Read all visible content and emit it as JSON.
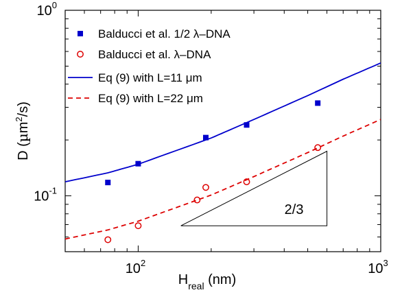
{
  "chart_data": {
    "type": "scatter",
    "xscale": "log",
    "yscale": "log",
    "xlim": [
      50,
      1000
    ],
    "ylim": [
      0.05,
      1
    ],
    "grid": false,
    "legend_position": "top-left",
    "xlabel": {
      "main": "H",
      "sub": "real",
      "rest": " (nm)"
    },
    "ylabel": {
      "pre": "D (",
      "mu": "µ",
      "m": "m",
      "sup": "2",
      "post": "/s)"
    },
    "x_ticks": [
      {
        "value": 100,
        "base": "10",
        "exp": "2"
      },
      {
        "value": 1000,
        "base": "10",
        "exp": "3"
      }
    ],
    "y_ticks": [
      {
        "value": 0.1,
        "base": "10",
        "exp": "-1"
      },
      {
        "value": 1,
        "base": "10",
        "exp": "0"
      }
    ],
    "series": [
      {
        "name": "Balducci et al. 1/2 λ–DNA",
        "kind": "marker-square",
        "color": "#0000cc",
        "points": [
          [
            75,
            0.118
          ],
          [
            100,
            0.149
          ],
          [
            190,
            0.206
          ],
          [
            280,
            0.241
          ],
          [
            550,
            0.316
          ]
        ]
      },
      {
        "name": "Balducci et al. λ–DNA",
        "kind": "marker-circle",
        "color": "#dd0000",
        "points": [
          [
            75,
            0.058
          ],
          [
            100,
            0.069
          ],
          [
            175,
            0.095
          ],
          [
            190,
            0.111
          ],
          [
            280,
            0.119
          ],
          [
            550,
            0.182
          ]
        ]
      },
      {
        "name": "Eq (9) with L=11 μm",
        "kind": "line-solid",
        "color": "#0000cc",
        "points": [
          [
            50,
            0.119
          ],
          [
            75,
            0.133
          ],
          [
            100,
            0.148
          ],
          [
            200,
            0.205
          ],
          [
            300,
            0.258
          ],
          [
            500,
            0.347
          ],
          [
            700,
            0.425
          ],
          [
            1000,
            0.52
          ]
        ]
      },
      {
        "name": "Eq (9) with L=22 μm",
        "kind": "line-dashed",
        "color": "#dd0000",
        "points": [
          [
            50,
            0.0585
          ],
          [
            75,
            0.0655
          ],
          [
            100,
            0.073
          ],
          [
            200,
            0.101
          ],
          [
            300,
            0.127
          ],
          [
            500,
            0.171
          ],
          [
            700,
            0.21
          ],
          [
            1000,
            0.258
          ]
        ]
      }
    ],
    "annotation": {
      "label": "2/3",
      "triangle": [
        [
          150,
          0.069
        ],
        [
          600,
          0.069
        ],
        [
          600,
          0.174
        ]
      ]
    }
  }
}
